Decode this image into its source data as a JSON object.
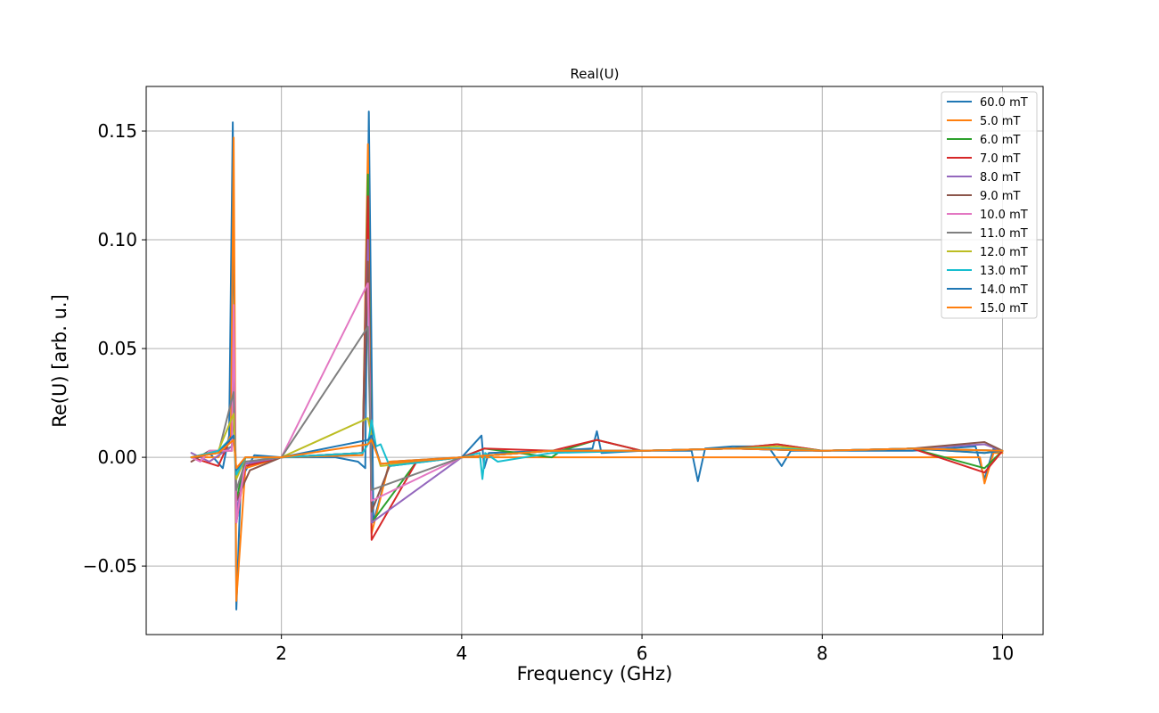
{
  "chart_data": {
    "type": "line",
    "title": "Real(U)",
    "xlabel": "Frequency (GHz)",
    "ylabel": "Re(U) [arb. u.]",
    "xlim": [
      0.5,
      10.45
    ],
    "ylim": [
      -0.0815,
      0.1705
    ],
    "xticks": [
      2,
      4,
      6,
      8,
      10
    ],
    "xtick_labels": [
      "2",
      "4",
      "6",
      "8",
      "10"
    ],
    "yticks": [
      -0.05,
      0.0,
      0.05,
      0.1,
      0.15
    ],
    "ytick_labels": [
      "−0.05",
      "0.00",
      "0.05",
      "0.10",
      "0.15"
    ],
    "grid": true,
    "legend_position": "top-right",
    "x_range": [
      1.0,
      10.0
    ],
    "series": [
      {
        "name": "60.0 mT",
        "color": "#1f77b4",
        "x": [
          1.0,
          1.2,
          1.35,
          1.42,
          1.46,
          1.5,
          1.55,
          1.7,
          2.0,
          2.6,
          2.85,
          2.93,
          2.97,
          3.02,
          3.2,
          4.0,
          4.22,
          4.25,
          4.3,
          5.0,
          5.45,
          5.5,
          5.55,
          6.0,
          6.55,
          6.62,
          6.7,
          7.0,
          7.4,
          7.55,
          7.65,
          8.0,
          9.0,
          9.7,
          9.8,
          9.9,
          10.0
        ],
        "values": [
          0.0,
          0.002,
          -0.005,
          0.01,
          0.154,
          -0.07,
          -0.01,
          0.001,
          0.0,
          0.0,
          -0.002,
          -0.005,
          0.159,
          -0.03,
          -0.002,
          0.0,
          0.01,
          -0.005,
          0.002,
          0.003,
          0.004,
          0.012,
          0.002,
          0.003,
          0.003,
          -0.011,
          0.004,
          0.005,
          0.005,
          -0.004,
          0.003,
          0.003,
          0.003,
          0.005,
          -0.01,
          0.004,
          0.003
        ]
      },
      {
        "name": "5.0 mT",
        "color": "#ff7f0e",
        "x": [
          1.0,
          1.3,
          1.44,
          1.47,
          1.5,
          1.6,
          2.0,
          2.9,
          2.96,
          3.0,
          3.2,
          4.0,
          5.0,
          6.0,
          7.0,
          8.0,
          9.0,
          9.75,
          9.8,
          9.9,
          10.0
        ],
        "values": [
          0.0,
          0.0,
          0.01,
          0.147,
          -0.066,
          -0.005,
          0.0,
          0.001,
          0.144,
          -0.035,
          -0.002,
          0.0,
          0.0,
          0.0,
          0.0,
          0.0,
          0.0,
          0.0,
          -0.012,
          0.002,
          0.002
        ]
      },
      {
        "name": "6.0 mT",
        "color": "#2ca02c",
        "x": [
          1.0,
          1.3,
          1.45,
          1.47,
          1.5,
          1.6,
          2.0,
          2.9,
          2.96,
          3.0,
          3.5,
          4.0,
          4.25,
          5.0,
          5.1,
          5.5,
          6.0,
          7.0,
          7.5,
          8.0,
          9.0,
          9.8,
          10.0
        ],
        "values": [
          0.0,
          0.002,
          0.005,
          0.025,
          -0.02,
          0.0,
          0.0,
          0.002,
          0.13,
          -0.03,
          -0.002,
          0.0,
          0.004,
          0.0,
          0.003,
          0.008,
          0.003,
          0.004,
          0.006,
          0.003,
          0.004,
          -0.005,
          0.003
        ]
      },
      {
        "name": "7.0 mT",
        "color": "#d62728",
        "x": [
          1.0,
          1.3,
          1.45,
          1.47,
          1.5,
          1.6,
          2.0,
          2.9,
          2.96,
          3.0,
          3.5,
          4.0,
          4.25,
          5.0,
          5.5,
          6.0,
          7.0,
          7.5,
          8.0,
          9.0,
          9.8,
          10.0
        ],
        "values": [
          0.0,
          -0.004,
          0.01,
          0.06,
          -0.03,
          -0.004,
          0.0,
          0.002,
          0.12,
          -0.038,
          -0.002,
          0.0,
          0.004,
          0.003,
          0.008,
          0.003,
          0.004,
          0.006,
          0.003,
          0.004,
          -0.007,
          0.003
        ]
      },
      {
        "name": "8.0 mT",
        "color": "#9467bd",
        "x": [
          1.0,
          1.2,
          1.45,
          1.47,
          1.5,
          1.6,
          2.0,
          2.9,
          2.96,
          3.0,
          4.0,
          5.0,
          6.0,
          7.0,
          8.0,
          9.0,
          9.8,
          10.0
        ],
        "values": [
          0.002,
          -0.002,
          0.005,
          0.05,
          -0.025,
          -0.003,
          0.0,
          0.002,
          0.1,
          -0.03,
          0.0,
          0.003,
          0.003,
          0.004,
          0.003,
          0.004,
          0.006,
          0.003
        ]
      },
      {
        "name": "9.0 mT",
        "color": "#8c564b",
        "x": [
          1.0,
          1.2,
          1.45,
          1.47,
          1.5,
          1.65,
          2.0,
          2.9,
          2.96,
          3.0,
          3.2,
          4.0,
          5.0,
          6.0,
          7.0,
          8.0,
          9.0,
          9.8,
          10.0
        ],
        "values": [
          -0.002,
          0.003,
          0.003,
          0.04,
          -0.02,
          -0.006,
          0.0,
          0.002,
          0.09,
          -0.025,
          -0.004,
          0.0,
          0.003,
          0.003,
          0.004,
          0.003,
          0.004,
          0.007,
          0.003
        ]
      },
      {
        "name": "10.0 mT",
        "color": "#e377c2",
        "x": [
          1.0,
          1.1,
          1.2,
          1.45,
          1.47,
          1.5,
          1.6,
          2.0,
          2.96,
          3.0,
          4.0,
          5.0,
          6.0,
          7.0,
          8.0,
          9.0,
          10.0
        ],
        "values": [
          0.0,
          -0.002,
          0.003,
          0.003,
          0.07,
          -0.03,
          -0.002,
          0.0,
          0.08,
          -0.02,
          0.0,
          0.003,
          0.003,
          0.004,
          0.003,
          0.004,
          0.003
        ]
      },
      {
        "name": "11.0 mT",
        "color": "#7f7f7f",
        "x": [
          1.0,
          1.3,
          1.47,
          1.5,
          1.6,
          2.0,
          2.96,
          3.0,
          4.0,
          5.0,
          6.0,
          7.0,
          8.0,
          9.0,
          10.0
        ],
        "values": [
          0.0,
          0.002,
          0.03,
          -0.015,
          -0.002,
          0.0,
          0.06,
          -0.015,
          0.0,
          0.003,
          0.003,
          0.004,
          0.003,
          0.004,
          0.003
        ]
      },
      {
        "name": "12.0 mT",
        "color": "#bcbd22",
        "x": [
          1.0,
          1.3,
          1.47,
          1.5,
          1.6,
          2.0,
          2.96,
          3.0,
          3.1,
          4.0,
          5.0,
          6.0,
          7.0,
          7.5,
          8.0,
          9.0,
          9.8,
          10.0
        ],
        "values": [
          0.0,
          0.003,
          0.02,
          -0.01,
          0.0,
          0.0,
          0.018,
          0.01,
          -0.004,
          0.0,
          0.003,
          0.003,
          0.004,
          0.005,
          0.003,
          0.004,
          0.002,
          0.003
        ]
      },
      {
        "name": "13.0 mT",
        "color": "#17becf",
        "x": [
          1.0,
          1.3,
          1.47,
          1.5,
          1.6,
          2.0,
          2.9,
          2.96,
          3.0,
          3.05,
          3.1,
          3.2,
          4.0,
          4.2,
          4.23,
          4.26,
          4.4,
          5.0,
          6.0,
          7.0,
          7.5,
          8.0,
          9.0,
          10.0
        ],
        "values": [
          0.0,
          0.003,
          0.01,
          -0.008,
          0.0,
          0.0,
          0.002,
          0.006,
          0.017,
          0.005,
          0.006,
          -0.004,
          0.0,
          0.002,
          -0.01,
          0.002,
          -0.002,
          0.002,
          0.003,
          0.004,
          0.004,
          0.003,
          0.004,
          0.003
        ]
      },
      {
        "name": "14.0 mT",
        "color": "#1f77b4",
        "x": [
          1.0,
          1.3,
          1.47,
          1.5,
          1.6,
          2.0,
          2.96,
          3.0,
          3.1,
          4.0,
          5.0,
          6.0,
          7.0,
          8.0,
          9.0,
          9.8,
          10.0
        ],
        "values": [
          0.0,
          0.002,
          0.01,
          -0.006,
          0.0,
          0.0,
          0.008,
          0.01,
          -0.003,
          0.0,
          0.003,
          0.003,
          0.004,
          0.003,
          0.004,
          0.002,
          0.003
        ]
      },
      {
        "name": "15.0 mT",
        "color": "#ff7f0e",
        "x": [
          1.0,
          1.3,
          1.47,
          1.5,
          1.6,
          2.0,
          2.96,
          3.0,
          3.1,
          4.0,
          5.0,
          6.0,
          7.0,
          8.0,
          9.0,
          10.0
        ],
        "values": [
          0.0,
          0.002,
          0.008,
          -0.005,
          0.0,
          0.0,
          0.006,
          0.008,
          -0.003,
          0.0,
          0.003,
          0.003,
          0.004,
          0.003,
          0.004,
          0.003
        ]
      }
    ]
  }
}
